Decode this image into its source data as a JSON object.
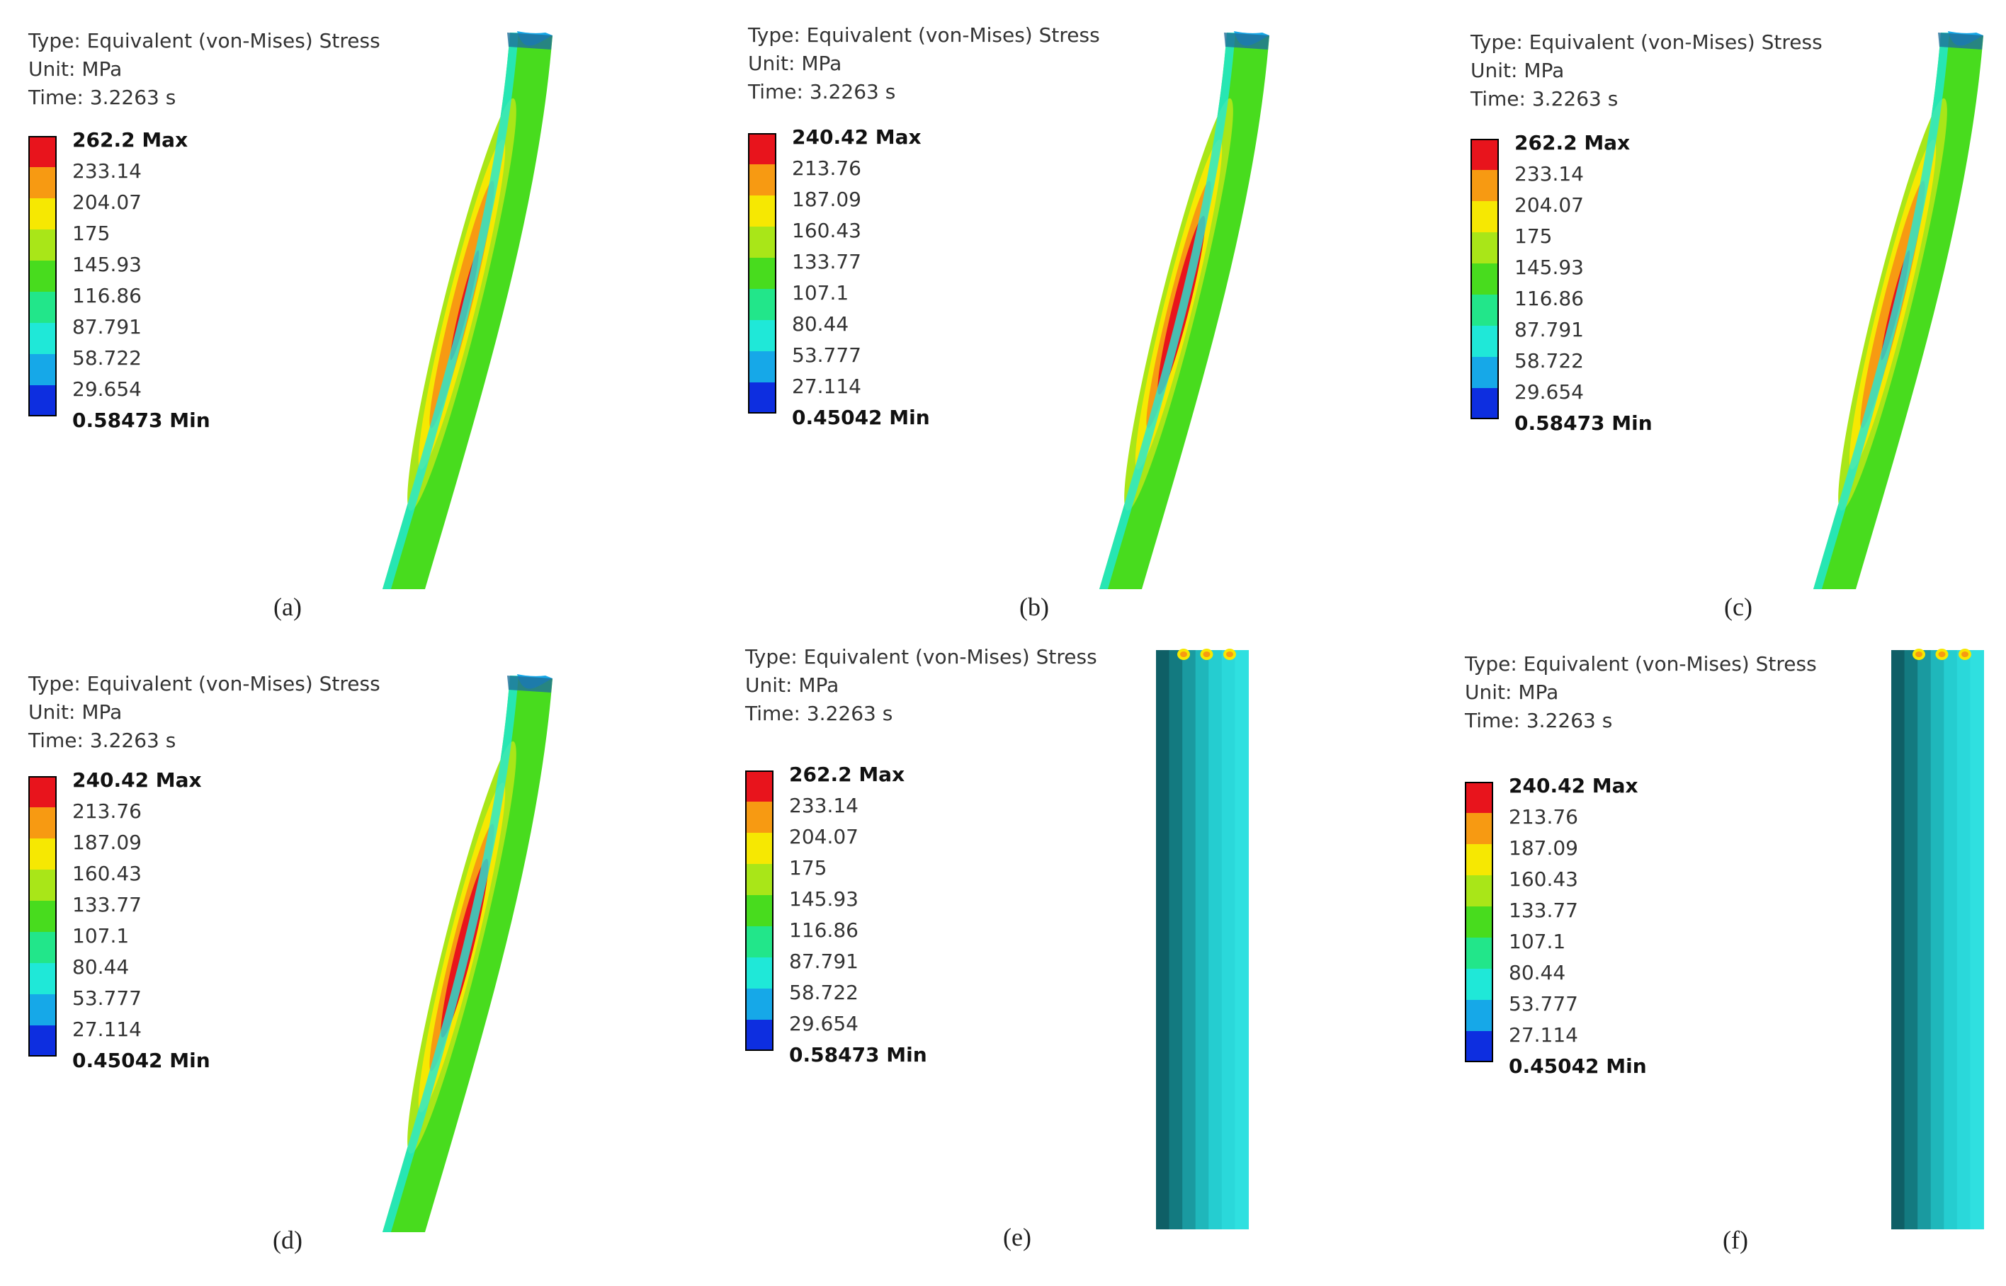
{
  "figure": {
    "panels": [
      {
        "label": "(a)",
        "header": {
          "type": "Type: Equivalent (von-Mises) Stress",
          "unit": "Unit: MPa",
          "time": "Time: 3.2263 s"
        },
        "model": "bent-beam",
        "legend": [
          {
            "value": "262.2 Max",
            "color": "#e8141c"
          },
          {
            "value": "233.14",
            "color": "#f79a12"
          },
          {
            "value": "204.07",
            "color": "#f6e802"
          },
          {
            "value": "175",
            "color": "#a9e618"
          },
          {
            "value": "145.93",
            "color": "#48dc1e"
          },
          {
            "value": "116.86",
            "color": "#22e68a"
          },
          {
            "value": "87.791",
            "color": "#1fe8d8"
          },
          {
            "value": "58.722",
            "color": "#16a8e8"
          },
          {
            "value": "29.654",
            "color": "#0d2ee0"
          },
          {
            "value": "0.58473 Min",
            "color": ""
          }
        ]
      },
      {
        "label": "(b)",
        "header": {
          "type": "Type: Equivalent (von-Mises) Stress",
          "unit": "Unit: MPa",
          "time": "Time: 3.2263 s"
        },
        "model": "bent-beam",
        "legend": [
          {
            "value": "240.42 Max",
            "color": "#e8141c"
          },
          {
            "value": "213.76",
            "color": "#f79a12"
          },
          {
            "value": "187.09",
            "color": "#f6e802"
          },
          {
            "value": "160.43",
            "color": "#a9e618"
          },
          {
            "value": "133.77",
            "color": "#48dc1e"
          },
          {
            "value": "107.1",
            "color": "#22e68a"
          },
          {
            "value": "80.44",
            "color": "#1fe8d8"
          },
          {
            "value": "53.777",
            "color": "#16a8e8"
          },
          {
            "value": "27.114",
            "color": "#0d2ee0"
          },
          {
            "value": "0.45042 Min",
            "color": ""
          }
        ]
      },
      {
        "label": "(c)",
        "header": {
          "type": "Type: Equivalent (von-Mises) Stress",
          "unit": "Unit: MPa",
          "time": "Time: 3.2263 s"
        },
        "model": "bent-beam",
        "legend": [
          {
            "value": "262.2 Max",
            "color": "#e8141c"
          },
          {
            "value": "233.14",
            "color": "#f79a12"
          },
          {
            "value": "204.07",
            "color": "#f6e802"
          },
          {
            "value": "175",
            "color": "#a9e618"
          },
          {
            "value": "145.93",
            "color": "#48dc1e"
          },
          {
            "value": "116.86",
            "color": "#22e68a"
          },
          {
            "value": "87.791",
            "color": "#1fe8d8"
          },
          {
            "value": "58.722",
            "color": "#16a8e8"
          },
          {
            "value": "29.654",
            "color": "#0d2ee0"
          },
          {
            "value": "0.58473 Min",
            "color": ""
          }
        ]
      },
      {
        "label": "(d)",
        "header": {
          "type": "Type: Equivalent (von-Mises) Stress",
          "unit": "Unit: MPa",
          "time": "Time: 3.2263 s"
        },
        "model": "bent-beam",
        "legend": [
          {
            "value": "240.42 Max",
            "color": "#e8141c"
          },
          {
            "value": "213.76",
            "color": "#f79a12"
          },
          {
            "value": "187.09",
            "color": "#f6e802"
          },
          {
            "value": "160.43",
            "color": "#a9e618"
          },
          {
            "value": "133.77",
            "color": "#48dc1e"
          },
          {
            "value": "107.1",
            "color": "#22e68a"
          },
          {
            "value": "80.44",
            "color": "#1fe8d8"
          },
          {
            "value": "53.777",
            "color": "#16a8e8"
          },
          {
            "value": "27.114",
            "color": "#0d2ee0"
          },
          {
            "value": "0.45042 Min",
            "color": ""
          }
        ]
      },
      {
        "label": "(e)",
        "header": {
          "type": "Type: Equivalent (von-Mises) Stress",
          "unit": "Unit: MPa",
          "time": "Time: 3.2263 s"
        },
        "model": "straight-column",
        "legend": [
          {
            "value": "262.2 Max",
            "color": "#e8141c"
          },
          {
            "value": "233.14",
            "color": "#f79a12"
          },
          {
            "value": "204.07",
            "color": "#f6e802"
          },
          {
            "value": "175",
            "color": "#a9e618"
          },
          {
            "value": "145.93",
            "color": "#48dc1e"
          },
          {
            "value": "116.86",
            "color": "#22e68a"
          },
          {
            "value": "87.791",
            "color": "#1fe8d8"
          },
          {
            "value": "58.722",
            "color": "#16a8e8"
          },
          {
            "value": "29.654",
            "color": "#0d2ee0"
          },
          {
            "value": "0.58473 Min",
            "color": ""
          }
        ]
      },
      {
        "label": "(f)",
        "header": {
          "type": "Type: Equivalent (von-Mises) Stress",
          "unit": "Unit: MPa",
          "time": "Time: 3.2263 s"
        },
        "model": "straight-column",
        "legend": [
          {
            "value": "240.42 Max",
            "color": "#e8141c"
          },
          {
            "value": "213.76",
            "color": "#f79a12"
          },
          {
            "value": "187.09",
            "color": "#f6e802"
          },
          {
            "value": "160.43",
            "color": "#a9e618"
          },
          {
            "value": "133.77",
            "color": "#48dc1e"
          },
          {
            "value": "107.1",
            "color": "#22e68a"
          },
          {
            "value": "80.44",
            "color": "#1fe8d8"
          },
          {
            "value": "53.777",
            "color": "#16a8e8"
          },
          {
            "value": "27.114",
            "color": "#0d2ee0"
          },
          {
            "value": "0.45042 Min",
            "color": ""
          }
        ]
      }
    ]
  }
}
